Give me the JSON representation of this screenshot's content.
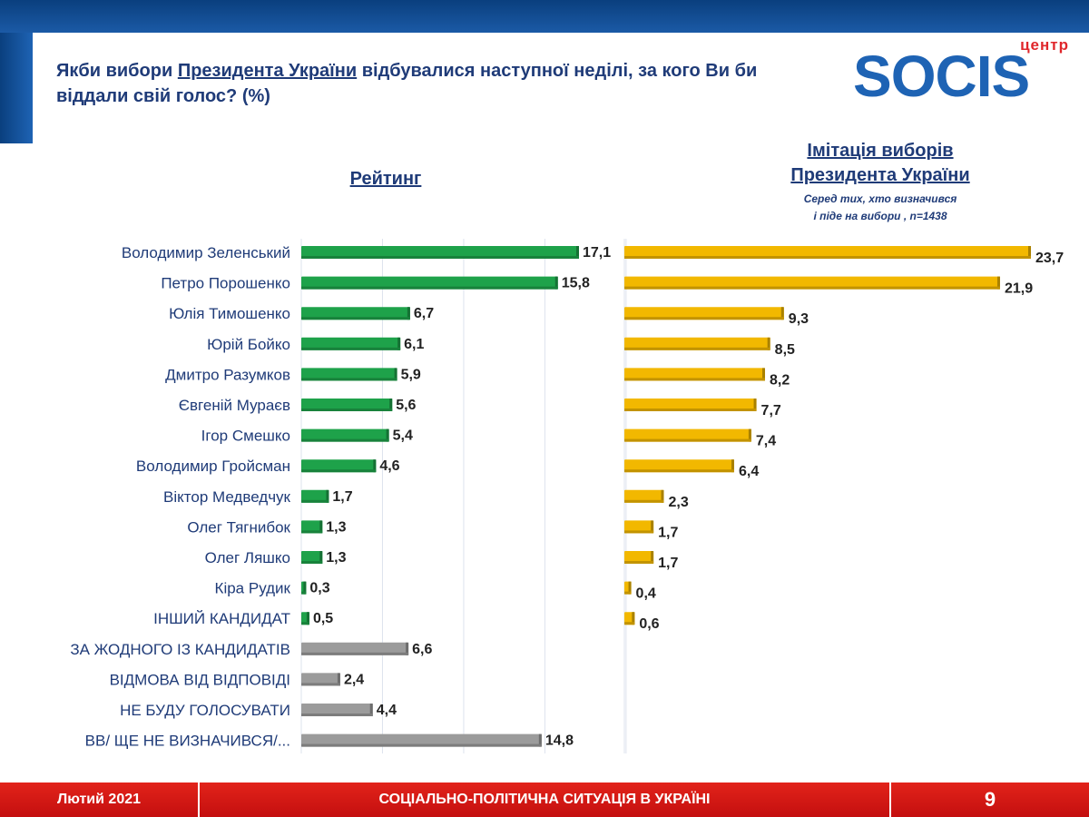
{
  "header": {
    "question_part1": "Якби вибори ",
    "question_link": "Президента України",
    "question_part2": " відбувалися наступної неділі, за кого Ви би віддали свій голос? (%)",
    "logo_small": "центр",
    "logo_main": "SOCIS"
  },
  "left_panel": {
    "title": "Рейтинг"
  },
  "right_panel": {
    "title_line1": "Імітація виборів",
    "title_line2": "Президента України",
    "sub_line1": "Серед тих, хто визначився",
    "sub_line2": "і піде на вибори , n=1438"
  },
  "colors": {
    "green": "#1ea24a",
    "gold": "#f2b800",
    "gray": "#9b9b9b",
    "band_blue": "#0a3f7e",
    "footer_red": "#d41a14"
  },
  "chart_data": [
    {
      "type": "bar",
      "orientation": "horizontal",
      "title": "Рейтинг",
      "categories": [
        "Володимир Зеленський",
        "Петро Порошенко",
        "Юлія Тимошенко",
        "Юрій Бойко",
        "Дмитро Разумков",
        "Євгеній Мураєв",
        "Ігор Смешко",
        "Володимир Гройсман",
        "Віктор Медведчук",
        "Олег Тягнибок",
        "Олег Ляшко",
        "Кіра Рудик",
        "ІНШИЙ КАНДИДАТ",
        "ЗА ЖОДНОГО ІЗ КАНДИДАТІВ",
        "ВІДМОВА ВІД ВІДПОВІДІ",
        "НЕ БУДУ ГОЛОСУВАТИ",
        "ВВ/ ЩЕ НЕ ВИЗНАЧИВСЯ/..."
      ],
      "values": [
        17.1,
        15.8,
        6.7,
        6.1,
        5.9,
        5.6,
        5.4,
        4.6,
        1.7,
        1.3,
        1.3,
        0.3,
        0.5,
        6.6,
        2.4,
        4.4,
        14.8
      ],
      "value_labels": [
        "17,1",
        "15,8",
        "6,7",
        "6,1",
        "5,9",
        "5,6",
        "5,4",
        "4,6",
        "1,7",
        "1,3",
        "1,3",
        "0,3",
        "0,5",
        "6,6",
        "2,4",
        "4,4",
        "14,8"
      ],
      "colors": [
        "green",
        "green",
        "green",
        "green",
        "green",
        "green",
        "green",
        "green",
        "green",
        "green",
        "green",
        "green",
        "green",
        "gray",
        "gray",
        "gray",
        "gray"
      ],
      "xlim": [
        0,
        20
      ],
      "grid": true
    },
    {
      "type": "bar",
      "orientation": "horizontal",
      "title": "Імітація виборів Президента України",
      "categories": [
        "Володимир Зеленський",
        "Петро Порошенко",
        "Юлія Тимошенко",
        "Юрій Бойко",
        "Дмитро Разумков",
        "Євгеній Мураєв",
        "Ігор Смешко",
        "Володимир Гройсман",
        "Віктор Медведчук",
        "Олег Тягнибок",
        "Олег Ляшко",
        "Кіра Рудик",
        "ІНШИЙ КАНДИДАТ"
      ],
      "values": [
        23.7,
        21.9,
        9.3,
        8.5,
        8.2,
        7.7,
        7.4,
        6.4,
        2.3,
        1.7,
        1.7,
        0.4,
        0.6
      ],
      "value_labels": [
        "23,7",
        "21,9",
        "9,3",
        "8,5",
        "8,2",
        "7,7",
        "7,4",
        "6,4",
        "2,3",
        "1,7",
        "1,7",
        "0,4",
        "0,6"
      ],
      "color": "gold",
      "xlim": [
        0,
        25
      ],
      "grid": false
    }
  ],
  "footer": {
    "date": "Лютий 2021",
    "subtitle": "СОЦІАЛЬНО-ПОЛІТИЧНА СИТУАЦІЯ  В УКРАЇНІ",
    "page": "9"
  }
}
